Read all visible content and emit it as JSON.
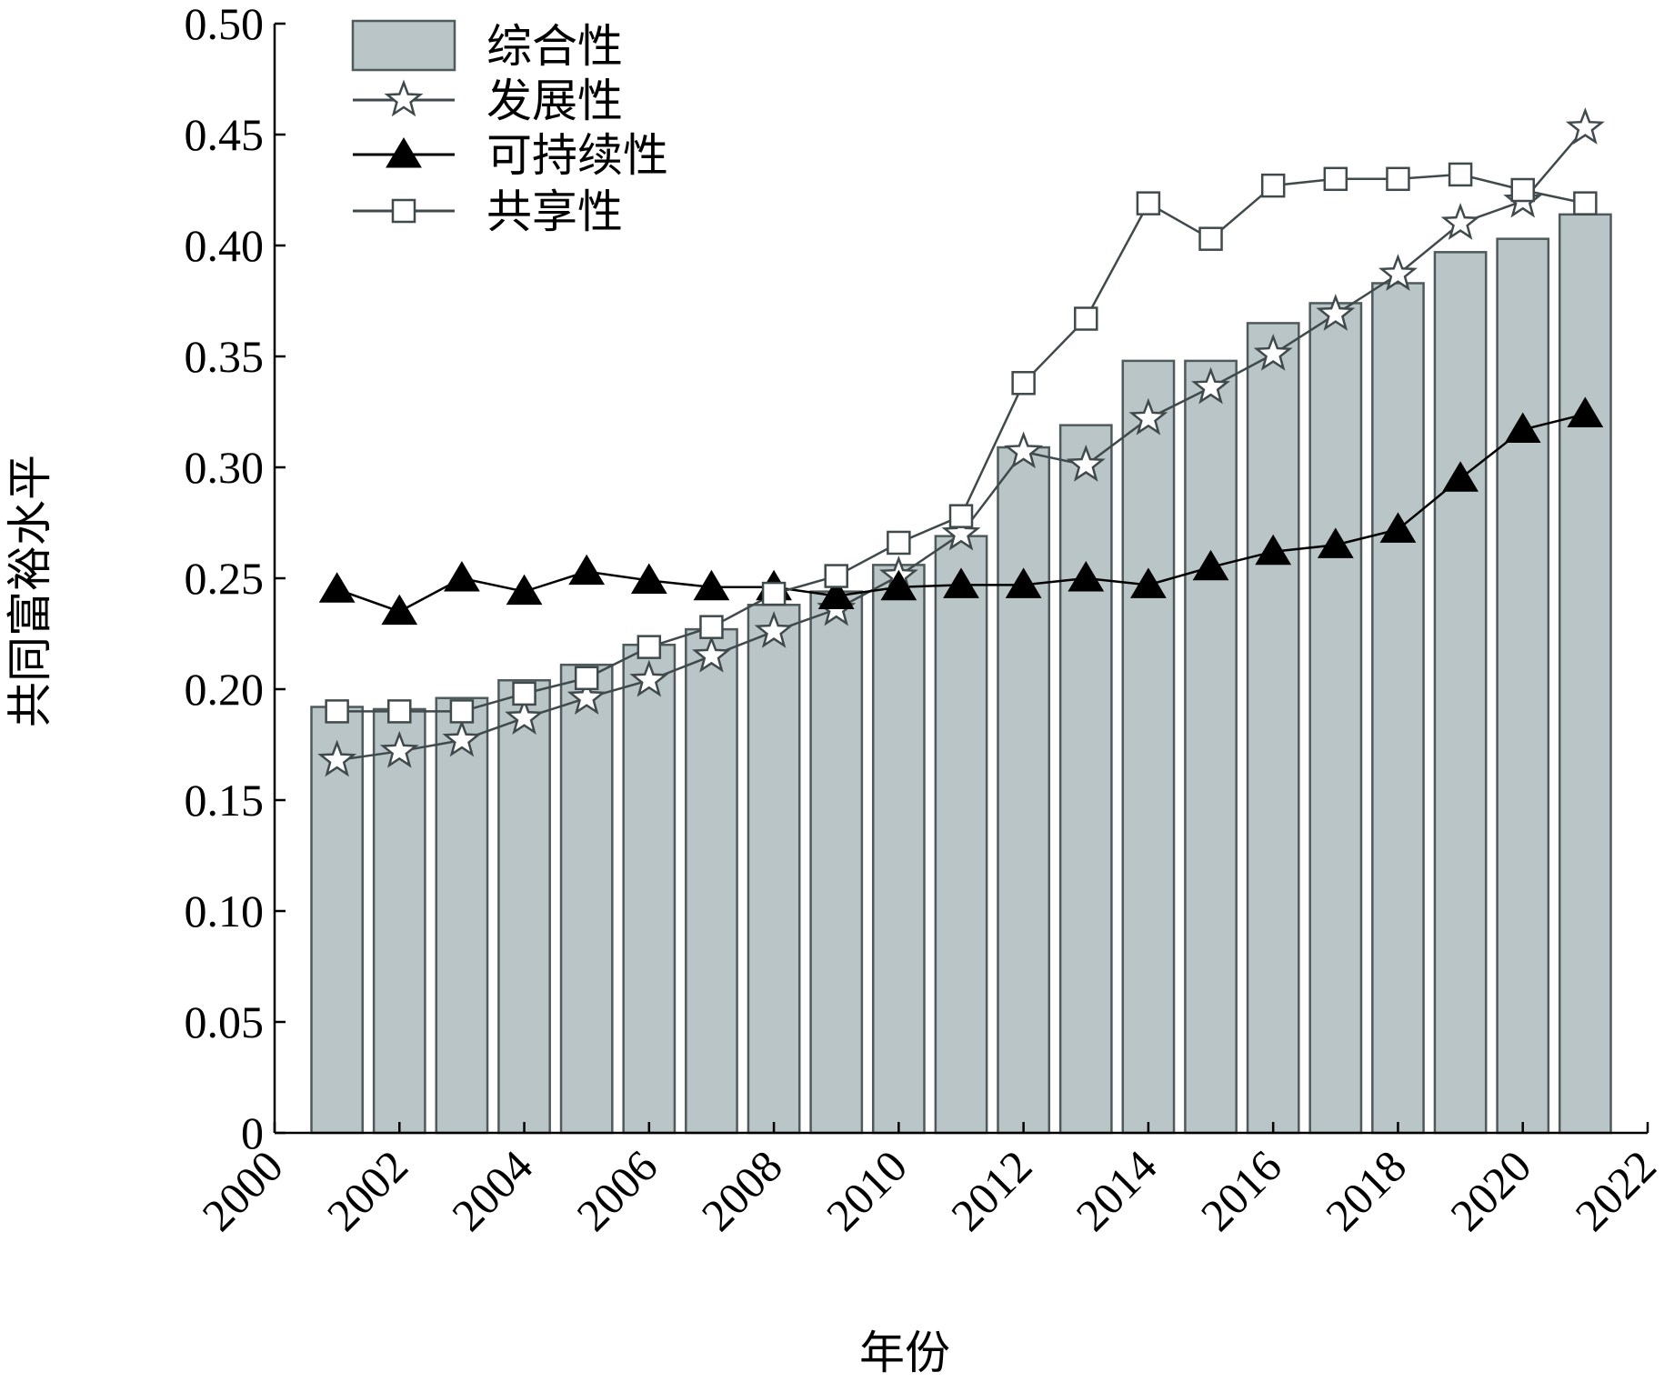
{
  "chart_data": {
    "type": "bar",
    "x": [
      2001,
      2002,
      2003,
      2004,
      2005,
      2006,
      2007,
      2008,
      2009,
      2010,
      2011,
      2012,
      2013,
      2014,
      2015,
      2016,
      2017,
      2018,
      2019,
      2020,
      2021
    ],
    "series": [
      {
        "name": "综合性",
        "kind": "bar",
        "color": "#b9c5c6",
        "values": [
          0.192,
          0.191,
          0.196,
          0.204,
          0.211,
          0.22,
          0.227,
          0.238,
          0.244,
          0.256,
          0.269,
          0.309,
          0.319,
          0.348,
          0.348,
          0.365,
          0.374,
          0.383,
          0.397,
          0.403,
          0.414
        ]
      },
      {
        "name": "发展性",
        "kind": "line",
        "marker": "star-open",
        "color": "#404a4c",
        "values": [
          0.168,
          0.172,
          0.177,
          0.187,
          0.196,
          0.204,
          0.215,
          0.226,
          0.236,
          0.251,
          0.27,
          0.307,
          0.301,
          0.322,
          0.336,
          0.351,
          0.369,
          0.387,
          0.41,
          0.42,
          0.453
        ]
      },
      {
        "name": "可持续性",
        "kind": "line",
        "marker": "triangle-filled",
        "color": "#000000",
        "values": [
          0.245,
          0.235,
          0.25,
          0.244,
          0.253,
          0.249,
          0.246,
          0.246,
          0.242,
          0.246,
          0.247,
          0.247,
          0.25,
          0.247,
          0.255,
          0.262,
          0.265,
          0.272,
          0.295,
          0.317,
          0.324
        ]
      },
      {
        "name": "共享性",
        "kind": "line",
        "marker": "square-open",
        "color": "#404a4c",
        "values": [
          0.19,
          0.19,
          0.19,
          0.198,
          0.205,
          0.219,
          0.228,
          0.243,
          0.251,
          0.266,
          0.278,
          0.338,
          0.367,
          0.419,
          0.403,
          0.427,
          0.43,
          0.43,
          0.432,
          0.425,
          0.419
        ]
      }
    ],
    "xlabel": "年份",
    "ylabel": "共同富裕水平",
    "xlim": [
      2000,
      2022
    ],
    "ylim": [
      0,
      0.5
    ],
    "xticks": [
      "2000",
      "2002",
      "2004",
      "2006",
      "2008",
      "2010",
      "2012",
      "2014",
      "2016",
      "2018",
      "2020",
      "2022"
    ],
    "yticks": [
      "0",
      "0.05",
      "0.10",
      "0.15",
      "0.20",
      "0.25",
      "0.30",
      "0.35",
      "0.40",
      "0.45",
      "0.50"
    ],
    "grid": false,
    "legend": "top-left"
  }
}
